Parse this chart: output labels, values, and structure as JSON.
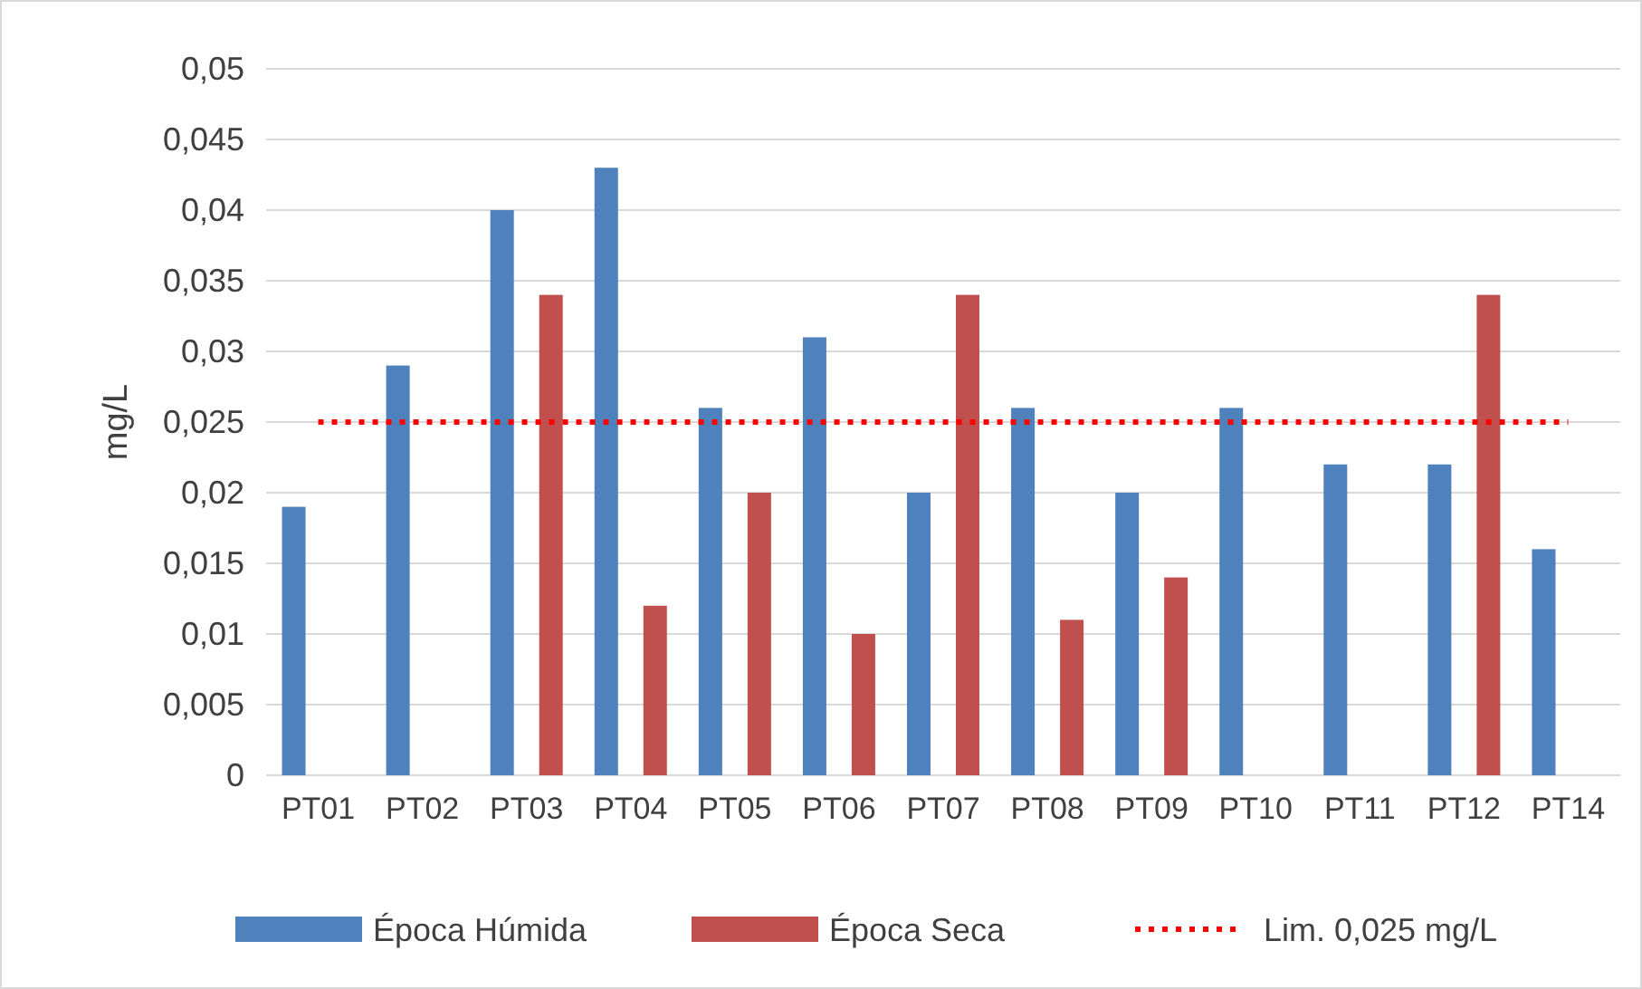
{
  "chart_data": {
    "type": "bar",
    "ylabel": "mg/L",
    "categories": [
      "PT01",
      "PT02",
      "PT03",
      "PT04",
      "PT05",
      "PT06",
      "PT07",
      "PT08",
      "PT09",
      "PT10",
      "PT11",
      "PT12",
      "PT14"
    ],
    "series": [
      {
        "name": "Época Húmida",
        "color": "#4f81bd",
        "values": [
          0.019,
          0.029,
          0.04,
          0.043,
          0.026,
          0.031,
          0.02,
          0.026,
          0.02,
          0.026,
          0.022,
          0.022,
          0.016
        ]
      },
      {
        "name": "Época Seca",
        "color": "#c0504d",
        "values": [
          null,
          null,
          0.034,
          0.012,
          0.02,
          0.01,
          0.034,
          0.011,
          0.014,
          null,
          null,
          0.034,
          null
        ]
      },
      {
        "name": "Lim. 0,025 mg/L",
        "type": "line",
        "line_style": "dotted",
        "marker": "none",
        "color": "#ff0000",
        "values": [
          0.025,
          0.025,
          0.025,
          0.025,
          0.025,
          0.025,
          0.025,
          0.025,
          0.025,
          0.025,
          0.025,
          0.025,
          0.025
        ]
      }
    ],
    "ylim": [
      0,
      0.05
    ],
    "yticks": [
      {
        "value": 0,
        "label": "0"
      },
      {
        "value": 0.005,
        "label": "0,005"
      },
      {
        "value": 0.01,
        "label": "0,01"
      },
      {
        "value": 0.015,
        "label": "0,015"
      },
      {
        "value": 0.02,
        "label": "0,02"
      },
      {
        "value": 0.025,
        "label": "0,025"
      },
      {
        "value": 0.03,
        "label": "0,03"
      },
      {
        "value": 0.035,
        "label": "0,035"
      },
      {
        "value": 0.04,
        "label": "0,04"
      },
      {
        "value": 0.045,
        "label": "0,045"
      },
      {
        "value": 0.05,
        "label": "0,05"
      }
    ],
    "grid": "y",
    "legend": "bottom"
  }
}
